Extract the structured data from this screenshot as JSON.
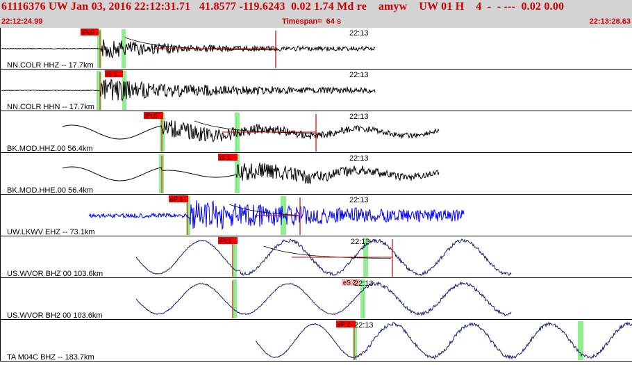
{
  "header": {
    "title": "61116376 UW Jan 03, 2016 22:12:31.71   41.8577 -119.6243  0.02 1.74 Md re    amyw    UW 01 H    4  -  - ---  0.02 0.00",
    "start_time": "22:12:24.99",
    "timespan": "Timespan=  64 s",
    "end_time": "22:13:28.63"
  },
  "colors": {
    "header_bg": "#d3d3d3",
    "header_text": "#cc0000",
    "pick_flag": "#ff0000",
    "pick_flag_light": "#ffb0b0",
    "pick_window": "#90ee90",
    "trace_black": "#000000",
    "trace_blue": "#0000ff",
    "trace_navy": "#191970",
    "coda_line": "#cc0000"
  },
  "traces": [
    {
      "label": "NN.COLR HHZ -- 17.7km",
      "time_mark": "22:13",
      "color": "black",
      "pick": "iPc0"
    },
    {
      "label": "NN.COLR HHN -- 17.7km",
      "time_mark": "22:13",
      "color": "black",
      "pick": "iS 1"
    },
    {
      "label": "BK.MOD.HHZ.00 56.4km",
      "time_mark": "22:13",
      "color": "black",
      "pick": "iPc0"
    },
    {
      "label": "BK.MOD.HHE.00 56.4km",
      "time_mark": "22:13",
      "color": "black",
      "pick": "iS 1"
    },
    {
      "label": "UW.LKWV EHZ -- 73.1km",
      "time_mark": "22:13",
      "color": "blue",
      "pick": "eP 1"
    },
    {
      "label": "US.WVOR BHZ 00 103.6km",
      "time_mark": "22:13",
      "color": "navy",
      "pick": "iPc1"
    },
    {
      "label": "US.WVOR BH2 00 103.6km",
      "time_mark": "22:13",
      "color": "navy",
      "pick": "eS 2"
    },
    {
      "label": "TA M04C BHZ -- 183.7km",
      "time_mark": "22:13",
      "color": "navy",
      "pick": "eP 2"
    }
  ]
}
